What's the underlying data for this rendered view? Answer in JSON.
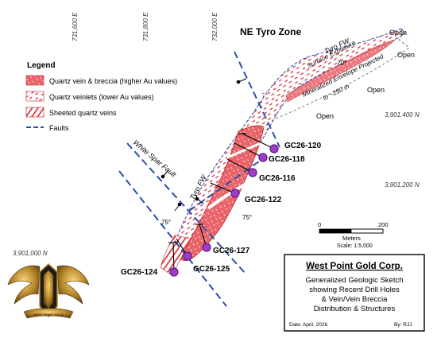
{
  "map_title": "NE Tyro Zone",
  "grid": {
    "eastings": [
      "731,600 E",
      "731,800 E",
      "732,000 E"
    ],
    "northings": [
      "3,901,400 N",
      "3,901,200 N",
      "3,901,000 N"
    ]
  },
  "legend": {
    "title": "Legend",
    "items": [
      {
        "label": "Quartz vein & breccia (higher Au values)",
        "symbol": "solid-breccia"
      },
      {
        "label": "Quartz veinlets (lower Au values)",
        "symbol": "veinlets"
      },
      {
        "label": "Sheeted quartz veins",
        "symbol": "sheeted"
      },
      {
        "label": "Faults",
        "symbol": "fault-line"
      }
    ]
  },
  "structure_labels": {
    "tyro_fw_ne": "Tyro FW",
    "surface_exposure": "Surface Exposure",
    "dip_70": "70°",
    "envelope_1": "Mineralized Envelope Projected",
    "envelope_2": "to ~250 m",
    "white_spar_fault": "White Spar Fault",
    "tyro_fw_sw": "Tyro FW",
    "dip_75a": "75°",
    "dip_75b": "75°",
    "open_labels": [
      "Open",
      "Open",
      "Open",
      "Open"
    ]
  },
  "drill_holes": [
    "GC26-120",
    "GC26-118",
    "GC26-116",
    "GC26-122",
    "GC26-127",
    "GC26-124",
    "GC26-125"
  ],
  "scale_bar": {
    "start": "0",
    "end": "200",
    "units": "Meters",
    "ratio": "Scale: 1:5,000"
  },
  "title_block": {
    "company": "West Point Gold Corp.",
    "lines": [
      "Generalized Geologic Sketch",
      "showing Recent Drill Holes",
      "& Vein/Vein Breccia",
      "Distribution & Structures"
    ],
    "date": "Date:  April, 2026",
    "by": "By:  RJJ"
  },
  "colors": {
    "breccia_fill": "#e8646a",
    "vein_red": "#d9232d",
    "fault_blue": "#2a4fa8",
    "drill_purple": "#a03cc8",
    "drill_outline": "#5a1a8a"
  },
  "logo_text": "WEST POINT GOLD"
}
